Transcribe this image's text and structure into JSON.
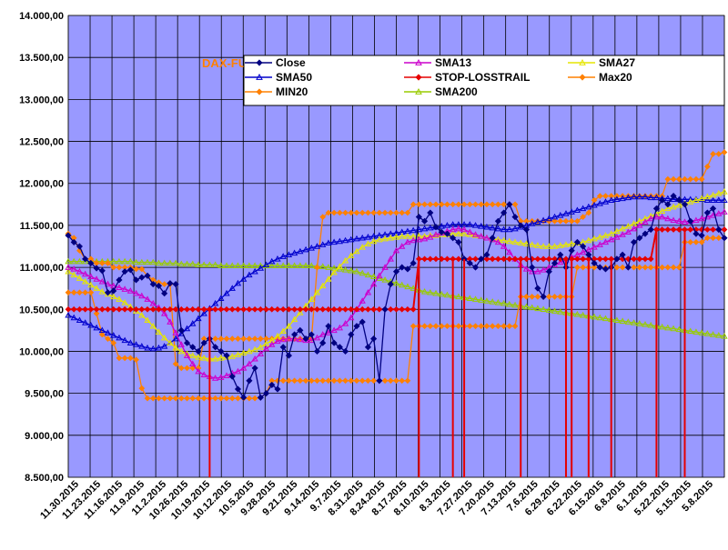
{
  "chart_data": {
    "type": "line",
    "title": "DAX-FUTURE",
    "xlabel": "",
    "ylabel": "",
    "ylim": [
      8500,
      14000
    ],
    "yticks": [
      8500,
      9000,
      9500,
      10000,
      10500,
      11000,
      11500,
      12000,
      12500,
      13000,
      13500,
      14000
    ],
    "ytick_labels": [
      "8.500,00",
      "9.000,00",
      "9.500,00",
      "10.000,00",
      "10.500,00",
      "11.000,00",
      "11.500,00",
      "12.000,00",
      "12.500,00",
      "13.000,00",
      "13.500,00",
      "14.000,00"
    ],
    "x_order": "newest-left",
    "xtick_labels": [
      "11.30.2015",
      "11.23.2015",
      "11.16.2015",
      "11.9.2015",
      "11.2.2015",
      "10.26.2015",
      "10.19.2015",
      "10.12.2015",
      "10.5.2015",
      "9.28.2015",
      "9.21.2015",
      "9.14.2015",
      "9.7.2015",
      "8.31.2015",
      "8.24.2015",
      "8.17.2015",
      "8.10.2015",
      "8.3.2015",
      "7.27.2015",
      "7.20.2015",
      "7.13.2015",
      "7.6.2015",
      "6.29.2015",
      "6.22.2015",
      "6.15.2015",
      "6.8.2015",
      "6.1.2015",
      "5.22.2015",
      "5.15.2015",
      "5.8.2015"
    ],
    "grid": true,
    "legend": "top-right",
    "series": [
      {
        "name": "Close",
        "color": "#000080",
        "marker": "diamond",
        "values": [
          11380,
          11300,
          11250,
          11100,
          11050,
          10990,
          10960,
          10700,
          10720,
          10850,
          10950,
          10970,
          10850,
          10880,
          10900,
          10800,
          10780,
          10690,
          10810,
          10800,
          10250,
          10100,
          10050,
          10000,
          10100,
          10150,
          10050,
          10000,
          9950,
          9700,
          9550,
          9450,
          9650,
          9800,
          9450,
          9500,
          9600,
          9550,
          10050,
          9950,
          10200,
          10250,
          10150,
          10200,
          10000,
          10100,
          10300,
          10100,
          10050,
          10000,
          10200,
          10300,
          10350,
          10050,
          10150,
          9650,
          10500,
          10800,
          10950,
          11000,
          10980,
          11050,
          11600,
          11550,
          11650,
          11480,
          11420,
          11400,
          11350,
          11300,
          11100,
          11050,
          11000,
          11100,
          11150,
          11350,
          11550,
          11650,
          11750,
          11600,
          11500,
          11450,
          11000,
          10750,
          10650,
          10950,
          11050,
          11150,
          11000,
          11200,
          11300,
          11250,
          11150,
          11050,
          11000,
          10980,
          11000,
          11100,
          11150,
          11000,
          11300,
          11350,
          11400,
          11450,
          11700,
          11800,
          11750,
          11850,
          11800,
          11750,
          11550,
          11400,
          11380,
          11650,
          11700,
          11450,
          11350
        ]
      },
      {
        "name": "SMA13",
        "color": "#cc00cc",
        "marker": "triangle",
        "values": [
          11000,
          10980,
          10950,
          10920,
          10890,
          10860,
          10830,
          10800,
          10780,
          10760,
          10740,
          10720,
          10690,
          10660,
          10620,
          10570,
          10520,
          10450,
          10350,
          10220,
          10080,
          9950,
          9850,
          9760,
          9720,
          9700,
          9680,
          9690,
          9710,
          9740,
          9760,
          9800,
          9850,
          9910,
          9970,
          10030,
          10080,
          10120,
          10140,
          10150,
          10150,
          10140,
          10130,
          10130,
          10160,
          10200,
          10220,
          10250,
          10280,
          10330,
          10400,
          10500,
          10600,
          10700,
          10800,
          10900,
          11000,
          11100,
          11200,
          11250,
          11300,
          11320,
          11330,
          11340,
          11360,
          11390,
          11410,
          11430,
          11450,
          11460,
          11450,
          11420,
          11390,
          11370,
          11350,
          11330,
          11300,
          11250,
          11180,
          11100,
          11030,
          10980,
          10950,
          10950,
          10970,
          11000,
          11030,
          11060,
          11090,
          11120,
          11150,
          11180,
          11210,
          11240,
          11270,
          11300,
          11330,
          11360,
          11390,
          11420,
          11460,
          11500,
          11540,
          11580,
          11600,
          11600,
          11580,
          11560,
          11550,
          11540,
          11550,
          11560,
          11580,
          11600,
          11620,
          11640,
          11660
        ]
      },
      {
        "name": "SMA27",
        "color": "#e6e600",
        "marker": "triangle",
        "values": [
          10950,
          10910,
          10870,
          10830,
          10790,
          10750,
          10710,
          10680,
          10650,
          10620,
          10580,
          10530,
          10480,
          10430,
          10370,
          10300,
          10230,
          10160,
          10100,
          10040,
          10000,
          9970,
          9950,
          9930,
          9920,
          9910,
          9910,
          9920,
          9930,
          9940,
          9960,
          9980,
          10000,
          10020,
          10050,
          10090,
          10130,
          10180,
          10240,
          10300,
          10380,
          10460,
          10540,
          10620,
          10700,
          10780,
          10860,
          10940,
          11010,
          11080,
          11140,
          11190,
          11240,
          11280,
          11310,
          11330,
          11340,
          11350,
          11360,
          11370,
          11370,
          11370,
          11370,
          11370,
          11380,
          11380,
          11390,
          11390,
          11400,
          11400,
          11400,
          11390,
          11380,
          11370,
          11350,
          11340,
          11330,
          11320,
          11310,
          11300,
          11290,
          11280,
          11270,
          11260,
          11250,
          11250,
          11250,
          11260,
          11270,
          11280,
          11290,
          11300,
          11320,
          11340,
          11360,
          11380,
          11400,
          11430,
          11460,
          11490,
          11520,
          11550,
          11580,
          11610,
          11640,
          11670,
          11700,
          11720,
          11740,
          11760,
          11780,
          11800,
          11820,
          11840,
          11860,
          11880,
          11900
        ]
      },
      {
        "name": "SMA50",
        "color": "#0000cc",
        "marker": "triangle",
        "values": [
          10430,
          10400,
          10370,
          10340,
          10310,
          10280,
          10250,
          10220,
          10190,
          10160,
          10130,
          10100,
          10080,
          10060,
          10040,
          10030,
          10040,
          10060,
          10100,
          10150,
          10210,
          10270,
          10330,
          10390,
          10450,
          10510,
          10570,
          10630,
          10690,
          10750,
          10810,
          10860,
          10910,
          10950,
          10990,
          11030,
          11070,
          11100,
          11130,
          11150,
          11170,
          11190,
          11210,
          11230,
          11250,
          11270,
          11290,
          11300,
          11310,
          11320,
          11330,
          11340,
          11350,
          11360,
          11370,
          11380,
          11390,
          11400,
          11410,
          11420,
          11430,
          11440,
          11450,
          11460,
          11470,
          11480,
          11490,
          11500,
          11510,
          11510,
          11510,
          11510,
          11500,
          11490,
          11480,
          11470,
          11460,
          11450,
          11450,
          11460,
          11480,
          11500,
          11520,
          11540,
          11560,
          11580,
          11600,
          11620,
          11640,
          11660,
          11680,
          11700,
          11720,
          11740,
          11760,
          11780,
          11800,
          11810,
          11820,
          11830,
          11840,
          11840,
          11840,
          11830,
          11830,
          11820,
          11820,
          11810,
          11810,
          11810,
          11810,
          11810,
          11810,
          11800,
          11800,
          11800,
          11800
        ]
      },
      {
        "name": "STOP-LOSSTRAIL",
        "color": "#e60000",
        "marker": "diamond",
        "values": [
          10500,
          10500,
          10500,
          10500,
          10500,
          10500,
          10500,
          10500,
          10500,
          10500,
          10500,
          10500,
          10500,
          10500,
          10500,
          10500,
          10500,
          10500,
          10500,
          10500,
          10500,
          10500,
          10500,
          10500,
          10500,
          10500,
          10500,
          10500,
          10500,
          10500,
          10500,
          10500,
          10500,
          10500,
          10500,
          10500,
          10500,
          10500,
          10500,
          10500,
          10500,
          10500,
          10500,
          10500,
          10500,
          10500,
          10500,
          10500,
          10500,
          10500,
          10500,
          10500,
          10500,
          10500,
          10500,
          10500,
          10500,
          10500,
          10500,
          10500,
          10500,
          10500,
          11100,
          11100,
          11100,
          11100,
          11100,
          11100,
          11100,
          11100,
          11100,
          11100,
          11100,
          11100,
          11100,
          11100,
          11100,
          11100,
          11100,
          11100,
          11100,
          11100,
          11100,
          11100,
          11100,
          11100,
          11100,
          11100,
          11100,
          11100,
          11100,
          11100,
          11100,
          11100,
          11100,
          11100,
          11100,
          11100,
          11100,
          11100,
          11100,
          11100,
          11100,
          11100,
          11450,
          11450,
          11450,
          11450,
          11450,
          11450,
          11450,
          11450,
          11450,
          11450,
          11450,
          11450,
          11450
        ]
      },
      {
        "name": "Max20",
        "color": "#ff8000",
        "marker": "diamond",
        "values": [
          11400,
          11350,
          11200,
          11100,
          11100,
          11050,
          11050,
          11050,
          11000,
          11000,
          11000,
          11000,
          10980,
          10980,
          10900,
          10850,
          10820,
          10800,
          10800,
          9850,
          9800,
          9800,
          9800,
          9800,
          10150,
          10150,
          10150,
          10150,
          10150,
          10150,
          10150,
          10150,
          10150,
          10150,
          10150,
          10150,
          10150,
          10150,
          10150,
          10150,
          10150,
          10150,
          10150,
          10150,
          11000,
          11600,
          11650,
          11650,
          11650,
          11650,
          11650,
          11650,
          11650,
          11650,
          11650,
          11650,
          11650,
          11650,
          11650,
          11650,
          11650,
          11750,
          11750,
          11750,
          11750,
          11750,
          11750,
          11750,
          11750,
          11750,
          11750,
          11750,
          11750,
          11750,
          11750,
          11750,
          11750,
          11750,
          11750,
          11750,
          11550,
          11550,
          11550,
          11550,
          11550,
          11550,
          11550,
          11550,
          11550,
          11550,
          11550,
          11600,
          11650,
          11800,
          11850,
          11850,
          11850,
          11850,
          11850,
          11850,
          11850,
          11850,
          11850,
          11850,
          11850,
          11850,
          12050,
          12050,
          12050,
          12050,
          12050,
          12050,
          12050,
          12200,
          12350,
          12350,
          12370
        ]
      },
      {
        "name": "MIN20",
        "color": "#ff8000",
        "marker": "diamond",
        "values": [
          10700,
          10700,
          10700,
          10700,
          10700,
          10450,
          10200,
          10150,
          10100,
          9920,
          9920,
          9920,
          9900,
          9560,
          9440,
          9440,
          9440,
          9440,
          9440,
          9440,
          9440,
          9440,
          9440,
          9440,
          9440,
          9440,
          9440,
          9440,
          9440,
          9440,
          9440,
          9440,
          9440,
          9440,
          9450,
          9500,
          9650,
          9650,
          9650,
          9650,
          9650,
          9650,
          9650,
          9650,
          9650,
          9650,
          9650,
          9650,
          9650,
          9650,
          9650,
          9650,
          9650,
          9650,
          9650,
          9650,
          9650,
          9650,
          9650,
          9650,
          9650,
          10300,
          10300,
          10300,
          10300,
          10300,
          10300,
          10300,
          10300,
          10300,
          10300,
          10300,
          10300,
          10300,
          10300,
          10300,
          10300,
          10300,
          10300,
          10300,
          10650,
          10650,
          10650,
          10650,
          10650,
          10650,
          10650,
          10650,
          10650,
          10650,
          11000,
          11000,
          11000,
          11000,
          11000,
          11000,
          11000,
          11000,
          11000,
          11000,
          11000,
          11000,
          11000,
          11000,
          11000,
          11000,
          11000,
          11000,
          11000,
          11300,
          11300,
          11300,
          11300,
          11350,
          11350,
          11350,
          11350
        ]
      },
      {
        "name": "SMA200",
        "color": "#99cc00",
        "marker": "triangle",
        "values": [
          11070,
          11070,
          11070,
          11070,
          11070,
          11070,
          11070,
          11070,
          11070,
          11070,
          11070,
          11070,
          11060,
          11060,
          11060,
          11060,
          11050,
          11050,
          11050,
          11050,
          11040,
          11040,
          11040,
          11030,
          11030,
          11030,
          11030,
          11020,
          11020,
          11020,
          11020,
          11020,
          11020,
          11020,
          11020,
          11020,
          11020,
          11020,
          11020,
          11020,
          11020,
          11020,
          11020,
          11020,
          11010,
          11010,
          11000,
          10990,
          10980,
          10970,
          10960,
          10950,
          10930,
          10910,
          10890,
          10870,
          10850,
          10830,
          10810,
          10790,
          10770,
          10750,
          10730,
          10710,
          10700,
          10690,
          10680,
          10670,
          10660,
          10650,
          10640,
          10630,
          10620,
          10610,
          10600,
          10590,
          10580,
          10570,
          10560,
          10550,
          10540,
          10530,
          10520,
          10510,
          10500,
          10490,
          10480,
          10470,
          10460,
          10450,
          10440,
          10430,
          10420,
          10410,
          10400,
          10390,
          10380,
          10370,
          10360,
          10350,
          10340,
          10330,
          10320,
          10310,
          10300,
          10290,
          10280,
          10270,
          10260,
          10250,
          10240,
          10230,
          10220,
          10210,
          10200,
          10190,
          10180
        ]
      }
    ],
    "signal_lines": {
      "name": "STOP-LOSSTRAIL",
      "color": "#e60000",
      "segments": [
        {
          "index": 25,
          "from": 10500,
          "to": 8500
        },
        {
          "index": 62,
          "from": 11100,
          "to": 8500
        },
        {
          "index": 68,
          "from": 11100,
          "to": 8500
        },
        {
          "index": 70,
          "from": 11100,
          "to": 8500
        },
        {
          "index": 80,
          "from": 11100,
          "to": 8500
        },
        {
          "index": 88,
          "from": 11100,
          "to": 8500
        },
        {
          "index": 89,
          "from": 11100,
          "to": 8500
        },
        {
          "index": 92,
          "from": 11100,
          "to": 8500
        },
        {
          "index": 96,
          "from": 11100,
          "to": 8500
        },
        {
          "index": 104,
          "from": 11450,
          "to": 8500
        },
        {
          "index": 109,
          "from": 11450,
          "to": 8500
        }
      ]
    }
  }
}
